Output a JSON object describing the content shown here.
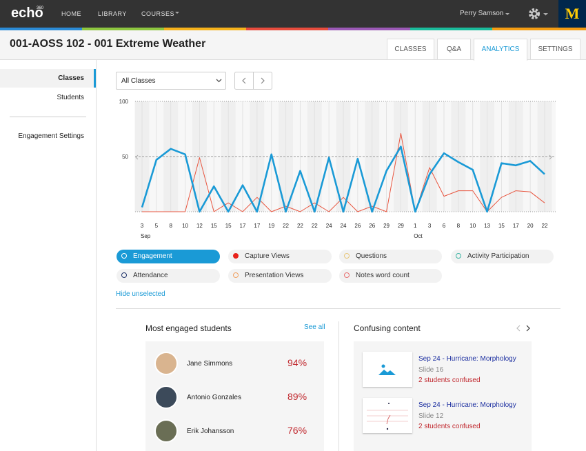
{
  "nav": {
    "logo": "echo",
    "logo_sup": "360",
    "items": [
      "HOME",
      "LIBRARY",
      "COURSES"
    ],
    "user": "Perry Samson",
    "badge": "M"
  },
  "course_title": "001-AOSS 102 - 001 Extreme Weather",
  "tabs": [
    "CLASSES",
    "Q&A",
    "ANALYTICS",
    "SETTINGS"
  ],
  "sidebar": [
    "Classes",
    "Students",
    "Engagement Settings"
  ],
  "filter": "All Classes",
  "chart_data": {
    "type": "line",
    "categories": [
      "3",
      "5",
      "8",
      "10",
      "12",
      "15",
      "15",
      "17",
      "17",
      "19",
      "22",
      "22",
      "22",
      "24",
      "24",
      "26",
      "26",
      "29",
      "29",
      "1",
      "3",
      "6",
      "8",
      "10",
      "13",
      "15",
      "17",
      "20",
      "22"
    ],
    "months": [
      "Sep",
      null,
      null,
      null,
      null,
      null,
      null,
      null,
      null,
      null,
      null,
      null,
      null,
      null,
      null,
      null,
      null,
      null,
      null,
      "Oct",
      null,
      null,
      null,
      null,
      null,
      null,
      null,
      null,
      null
    ],
    "ylim": [
      0,
      100
    ],
    "yticks": [
      50,
      100
    ],
    "grid": true,
    "series": [
      {
        "color": "#1a9ad6",
        "values": [
          4,
          47,
          57,
          52,
          0,
          23,
          0,
          24,
          0,
          52,
          0,
          37,
          0,
          49,
          0,
          48,
          0,
          37,
          59,
          0,
          34,
          53,
          45,
          38,
          0,
          44,
          42,
          46,
          34
        ]
      },
      {
        "color": "#e8553f",
        "values": [
          0,
          0,
          0,
          0,
          49,
          0,
          8,
          0,
          13,
          0,
          5,
          0,
          8,
          0,
          13,
          0,
          5,
          0,
          71,
          0,
          40,
          14,
          19,
          19,
          0,
          13,
          19,
          18,
          8
        ]
      }
    ],
    "legend": [
      {
        "name": "Engagement",
        "color": "#1a9ad6"
      },
      {
        "name": "Capture Views",
        "color": "#e8221b"
      },
      {
        "name": "Questions",
        "color": "#e8c77a"
      },
      {
        "name": "Activity Participation",
        "color": "#3bb3a3"
      },
      {
        "name": "Attendance",
        "color": "#22356b"
      },
      {
        "name": "Presentation Views",
        "color": "#f0a060"
      },
      {
        "name": "Notes word count",
        "color": "#e87070"
      }
    ],
    "hide_link": "Hide unselected"
  },
  "students_panel": {
    "title": "Most engaged students",
    "see_all": "See all",
    "rows": [
      {
        "name": "Jane Simmons",
        "score": "94%"
      },
      {
        "name": "Antonio Gonzales",
        "score": "89%"
      },
      {
        "name": "Erik Johansson",
        "score": "76%"
      }
    ]
  },
  "confusing_panel": {
    "title": "Confusing content",
    "items": [
      {
        "title": "Sep 24 - Hurricane: Morphology",
        "slide": "Slide 16",
        "note": "2 students confused"
      },
      {
        "title": "Sep 24 - Hurricane: Morphology",
        "slide": "Slide 12",
        "note": "2 students confused"
      }
    ]
  }
}
